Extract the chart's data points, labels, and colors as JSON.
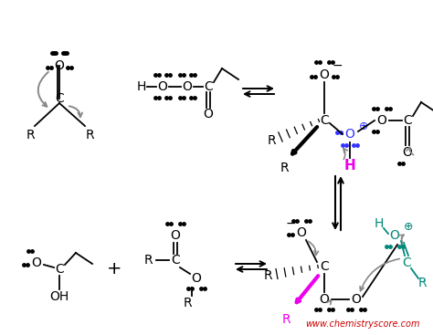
{
  "watermark": "www.chemistryscore.com",
  "watermark_color": "#cc0000",
  "bg_color": "#ffffff",
  "black": "#000000",
  "gray": "#888888",
  "blue": "#3333ff",
  "teal": "#008878",
  "magenta": "#ee00ee",
  "figsize": [
    4.74,
    3.67
  ],
  "dpi": 100,
  "xlim": [
    0,
    474
  ],
  "ylim": [
    0,
    367
  ]
}
